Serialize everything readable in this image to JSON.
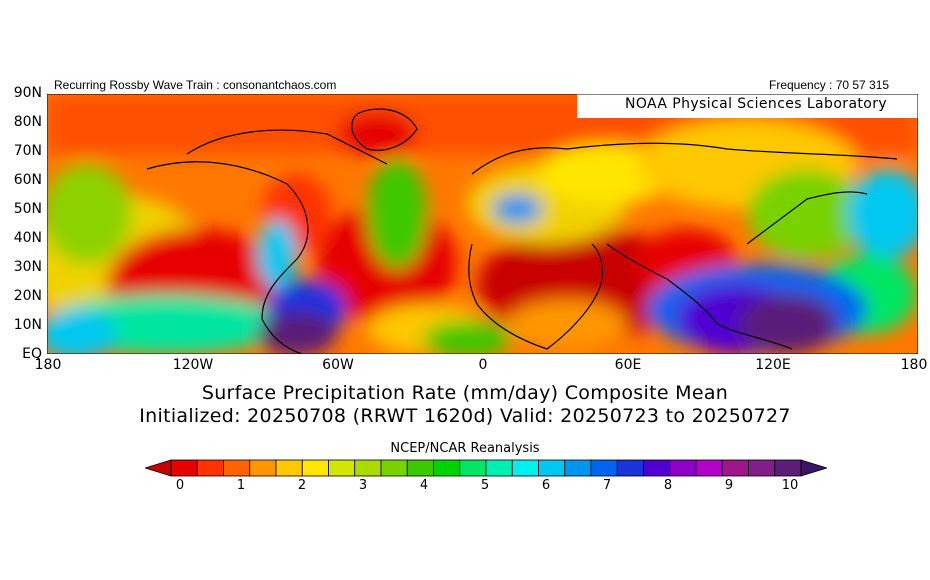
{
  "header": {
    "left": "Recurring Rossby Wave Train : consonantchaos.com",
    "right": "Frequency : 70 57 315"
  },
  "lab_label": "NOAA Physical Sciences Laboratory",
  "y_ticks": [
    "90N",
    "80N",
    "70N",
    "60N",
    "50N",
    "40N",
    "30N",
    "20N",
    "10N",
    "EQ"
  ],
  "x_ticks": [
    "180",
    "120W",
    "60W",
    "0",
    "60E",
    "120E",
    "180"
  ],
  "title_line1": "Surface Precipitation Rate (mm/day) Composite Mean",
  "title_line2": "Initialized: 20250708 (RRWT 1620d) Valid: 20250723 to 20250727",
  "colorbar_source": "NCEP/NCAR Reanalysis",
  "colorbar_ticks": [
    "0",
    "1",
    "2",
    "3",
    "4",
    "5",
    "6",
    "7",
    "8",
    "9",
    "10"
  ],
  "colorbar_colors": [
    "#c80000",
    "#e60000",
    "#ff3200",
    "#ff6400",
    "#ff9600",
    "#ffc800",
    "#ffe600",
    "#d2e600",
    "#aadc00",
    "#78d200",
    "#3cc800",
    "#00d200",
    "#00e664",
    "#00f0b4",
    "#00f0f0",
    "#00c8f0",
    "#0096f0",
    "#0064f0",
    "#1e32dc",
    "#5000d2",
    "#8c00c8",
    "#b400c8",
    "#a0148c",
    "#821e8c",
    "#5a1e78",
    "#3c1464"
  ]
}
